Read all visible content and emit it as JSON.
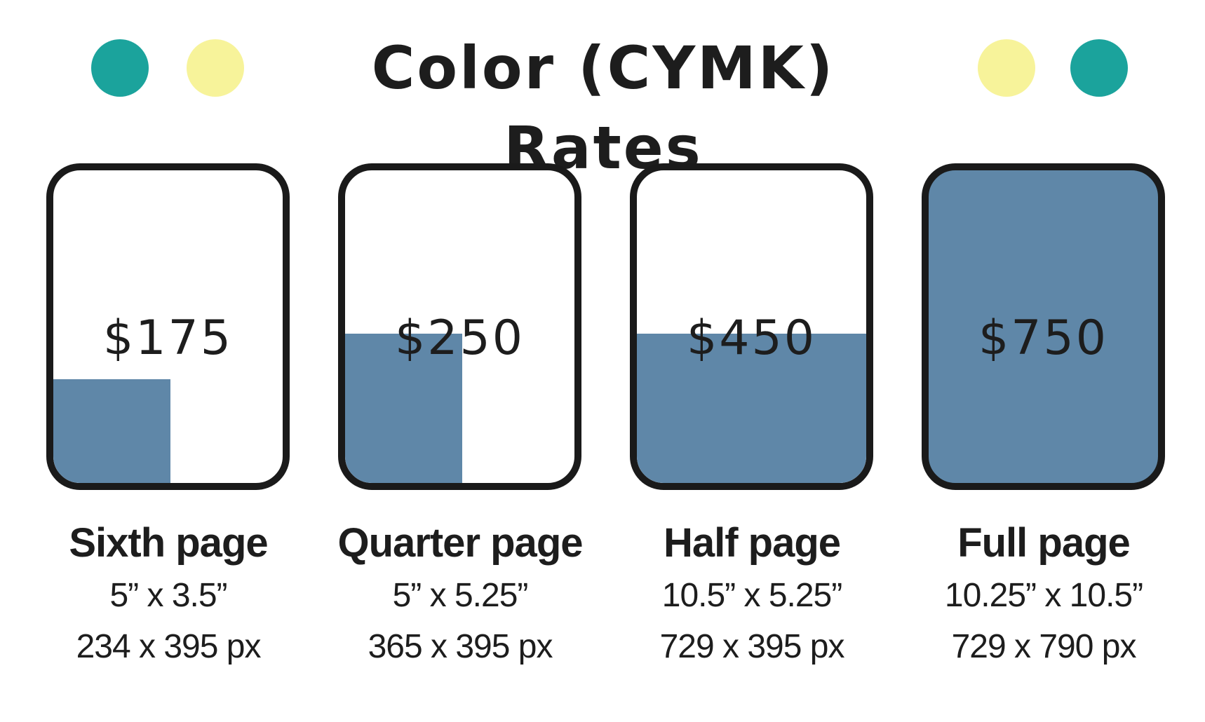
{
  "title": "Color (CYMK) Rates",
  "colors": {
    "teal": "#1ba39c",
    "yellow": "#f7f39a",
    "fill": "#5f87a8",
    "border": "#1a1a1a",
    "text": "#1d1d1d"
  },
  "rates": [
    {
      "price": "$175",
      "name": "Sixth page",
      "inches": "5” x 3.5”",
      "pixels": "234 x 395 px",
      "coverage": "sixth"
    },
    {
      "price": "$250",
      "name": "Quarter page",
      "inches": "5” x 5.25”",
      "pixels": "365 x 395 px",
      "coverage": "quarter"
    },
    {
      "price": "$450",
      "name": "Half page",
      "inches": "10.5” x 5.25”",
      "pixels": "729 x 395 px",
      "coverage": "half"
    },
    {
      "price": "$750",
      "name": "Full page",
      "inches": "10.25” x 10.5”",
      "pixels": "729 x 790 px",
      "coverage": "full"
    }
  ]
}
